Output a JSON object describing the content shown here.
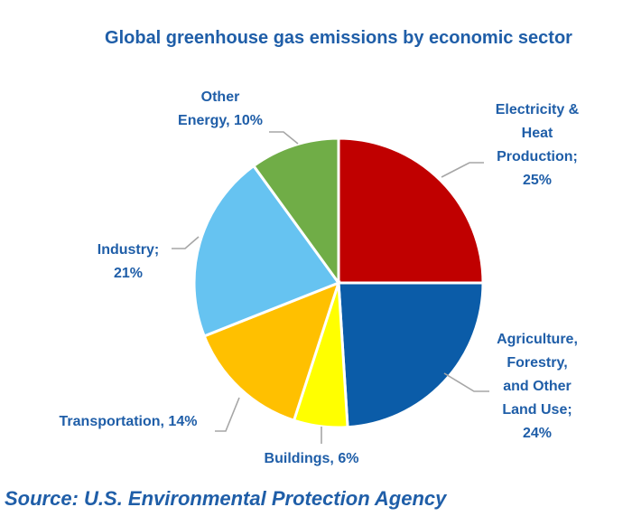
{
  "chart_data": {
    "type": "pie",
    "title": "Global greenhouse gas emissions by economic sector",
    "slices": [
      {
        "name": "Electricity & Heat Production",
        "value": 25,
        "color": "#c00000",
        "label_lines": [
          "Electricity &",
          "Heat",
          "Production;",
          "25%"
        ]
      },
      {
        "name": "Agriculture, Forestry, and Other Land Use",
        "value": 24,
        "color": "#0b5ca8",
        "label_lines": [
          "Agriculture,",
          "Forestry,",
          "and Other",
          "Land Use;",
          "24%"
        ]
      },
      {
        "name": "Buildings",
        "value": 6,
        "color": "#ffff00",
        "label_lines": [
          "Buildings, 6%"
        ]
      },
      {
        "name": "Transportation",
        "value": 14,
        "color": "#ffc000",
        "label_lines": [
          "Transportation, 14%"
        ]
      },
      {
        "name": "Industry",
        "value": 21,
        "color": "#66c3f1",
        "label_lines": [
          "Industry;",
          "21%"
        ]
      },
      {
        "name": "Other Energy",
        "value": 10,
        "color": "#70ad47",
        "label_lines": [
          "Other",
          "Energy, 10%"
        ]
      }
    ]
  },
  "source": "Source: U.S. Environmental Protection Agency"
}
